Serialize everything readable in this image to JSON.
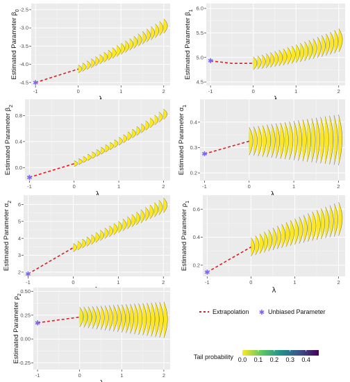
{
  "colors": {
    "panel_bg": "#ebebeb",
    "grid_major": "#ffffff",
    "extrapolation_line": "#e41a1c",
    "unbiased_point": "#7b68ee",
    "viridis": [
      "#fde725",
      "#5ec962",
      "#21918c",
      "#3b528b",
      "#440154"
    ]
  },
  "legend": {
    "extrapolation_label": "Extrapolation",
    "unbiased_label": "Unbiased Parameter",
    "tail_title": "Tail probability",
    "tail_ticks": [
      "0.0",
      "0.1",
      "0.2",
      "0.3",
      "0.4"
    ]
  },
  "chart_data": [
    {
      "type": "line",
      "id": "beta0",
      "ylabel": "Estimated Parameter β0",
      "ylabel_main": "Estimated Parameter β",
      "ylabel_sub": "0",
      "xlabel": "λ",
      "xlim": [
        -1.1,
        2.15
      ],
      "ylim": [
        -4.58,
        -2.33
      ],
      "xticks": [
        "-1",
        "0",
        "1",
        "2"
      ],
      "yticks": [
        "-4.5",
        "-4.0",
        "-3.5",
        "-3.0",
        "-2.5"
      ],
      "unbiased": {
        "x": -1,
        "y": -4.5
      },
      "extrapolation": {
        "x": [
          -1,
          0
        ],
        "y": [
          -4.5,
          -4.13
        ]
      },
      "lambda_grid": {
        "start": 0,
        "end": 2,
        "count": 21
      },
      "center_start": -4.13,
      "center_end": -2.95,
      "curve": 0.12,
      "density_spread": 0.2
    },
    {
      "type": "line",
      "id": "beta1",
      "ylabel": "Estimated Parameter β1",
      "ylabel_main": "Estimated Parameter β",
      "ylabel_sub": "1",
      "xlabel": "λ",
      "xlim": [
        -1.1,
        2.15
      ],
      "ylim": [
        4.43,
        6.1
      ],
      "xticks": [
        "-1",
        "0",
        "1",
        "2"
      ],
      "yticks": [
        "4.5",
        "5.0",
        "5.5",
        "6.0"
      ],
      "unbiased": {
        "x": -1,
        "y": 4.93
      },
      "extrapolation": {
        "x": [
          -1,
          -0.5,
          0
        ],
        "y": [
          4.93,
          4.88,
          4.88
        ]
      },
      "lambda_grid": {
        "start": 0,
        "end": 2,
        "count": 21
      },
      "center_start": 4.88,
      "center_end": 5.35,
      "curve": 0.32,
      "density_spread": 0.24
    },
    {
      "type": "line",
      "id": "beta2",
      "ylabel": "Estimated Parameter β2",
      "ylabel_main": "Estimated Parameter β",
      "ylabel_sub": "2",
      "xlabel": "λ",
      "xlim": [
        -1.1,
        2.15
      ],
      "ylim": [
        -0.2,
        1.05
      ],
      "xticks": [
        "-1",
        "0",
        "1",
        "2"
      ],
      "yticks": [
        "0.0",
        "0.4",
        "0.8"
      ],
      "unbiased": {
        "x": -1,
        "y": -0.15
      },
      "extrapolation": {
        "x": [
          -1,
          0
        ],
        "y": [
          -0.15,
          0.06
        ]
      },
      "lambda_grid": {
        "start": 0,
        "end": 2,
        "count": 21
      },
      "center_start": 0.06,
      "center_end": 0.82,
      "curve": 0.18,
      "density_spread": 0.08
    },
    {
      "type": "line",
      "id": "alpha1",
      "ylabel": "Estimated Parameter α1",
      "ylabel_main": "Estimated Parameter α",
      "ylabel_sub": "1",
      "xlabel": "λ",
      "xlim": [
        -1.1,
        2.15
      ],
      "ylim": [
        0.17,
        0.49
      ],
      "xticks": [
        "-1",
        "0",
        "1",
        "2"
      ],
      "yticks": [
        "0.2",
        "0.3",
        "0.4"
      ],
      "unbiased": {
        "x": -1,
        "y": 0.275
      },
      "extrapolation": {
        "x": [
          -1,
          0
        ],
        "y": [
          0.275,
          0.325
        ]
      },
      "lambda_grid": {
        "start": 0,
        "end": 2,
        "count": 21
      },
      "center_start": 0.325,
      "center_end": 0.33,
      "curve": 0.0,
      "density_spread": 0.1
    },
    {
      "type": "line",
      "id": "alpha2",
      "ylabel": "Estimated Parameter α2",
      "ylabel_main": "Estimated Parameter α",
      "ylabel_sub": "2",
      "xlabel": "λ",
      "xlim": [
        -1.1,
        2.15
      ],
      "ylim": [
        1.75,
        6.55
      ],
      "xticks": [
        "-1",
        "0",
        "1",
        "2"
      ],
      "yticks": [
        "2",
        "3",
        "4",
        "5",
        "6"
      ],
      "unbiased": {
        "x": -1,
        "y": 1.9
      },
      "extrapolation": {
        "x": [
          -1,
          0
        ],
        "y": [
          1.9,
          3.45
        ]
      },
      "lambda_grid": {
        "start": 0,
        "end": 2,
        "count": 21
      },
      "center_start": 3.45,
      "center_end": 5.95,
      "curve": 0.05,
      "density_spread": 0.45
    },
    {
      "type": "line",
      "id": "rho1",
      "ylabel": "Estimated Parameter ρ1",
      "ylabel_main": "Estimated Parameter ρ",
      "ylabel_sub": "1",
      "xlabel": "λ",
      "xlim": [
        -1.1,
        2.15
      ],
      "ylim": [
        0.12,
        0.7
      ],
      "xticks": [
        "-1",
        "0",
        "1",
        "2"
      ],
      "yticks": [
        "0.2",
        "0.4",
        "0.6"
      ],
      "unbiased": {
        "x": -1,
        "y": 0.15
      },
      "extrapolation": {
        "x": [
          -1,
          0
        ],
        "y": [
          0.15,
          0.33
        ]
      },
      "lambda_grid": {
        "start": 0,
        "end": 2,
        "count": 21
      },
      "center_start": 0.33,
      "center_end": 0.53,
      "curve": -0.2,
      "density_spread": 0.12
    },
    {
      "type": "line",
      "id": "rho2",
      "ylabel": "Estimated Parameter ρ2",
      "ylabel_main": "Estimated Parameter ρ",
      "ylabel_sub": "2",
      "xlabel": "λ",
      "xlim": [
        -1.1,
        2.15
      ],
      "ylim": [
        -0.32,
        0.54
      ],
      "xticks": [
        "-1",
        "0",
        "1",
        "2"
      ],
      "yticks": [
        "-0.25",
        "0.00",
        "0.25",
        "0.50"
      ],
      "unbiased": {
        "x": -1,
        "y": 0.17
      },
      "extrapolation": {
        "x": [
          -1,
          0
        ],
        "y": [
          0.17,
          0.23
        ]
      },
      "lambda_grid": {
        "start": 0,
        "end": 2,
        "count": 21
      },
      "center_start": 0.23,
      "center_end": 0.2,
      "curve": 0.0,
      "density_spread": 0.19
    }
  ]
}
